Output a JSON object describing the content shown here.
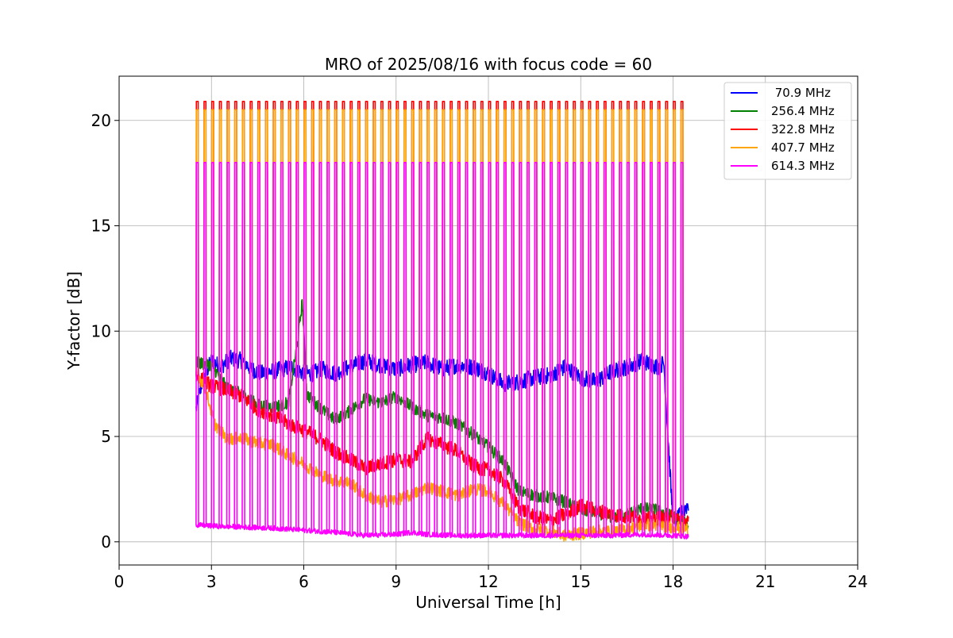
{
  "chart_data": {
    "type": "line",
    "title": "MRO of 2025/08/16 with focus code = 60",
    "xlabel": "Universal Time [h]",
    "ylabel": "Y-factor [dB]",
    "xlim": [
      0,
      24
    ],
    "ylim": [
      -1.1,
      22.1
    ],
    "xticks": [
      0,
      3,
      6,
      9,
      12,
      15,
      18,
      21,
      24
    ],
    "yticks": [
      0,
      5,
      10,
      15,
      20
    ],
    "grid": true,
    "legend_position": "top-right",
    "spikes": {
      "description_values_in_data_units": "periodic calibration spikes",
      "times": [
        2.5,
        2.75,
        3.0,
        3.25,
        3.5,
        3.75,
        4.0,
        4.25,
        4.5,
        4.75,
        5.0,
        5.25,
        5.5,
        5.75,
        6.0,
        6.25,
        6.5,
        6.75,
        7.0,
        7.25,
        7.5,
        7.75,
        8.0,
        8.25,
        8.5,
        8.75,
        9.0,
        9.25,
        9.5,
        9.75,
        10.0,
        10.25,
        10.5,
        10.75,
        11.0,
        11.25,
        11.5,
        11.75,
        12.0,
        12.25,
        12.5,
        12.75,
        13.0,
        13.25,
        13.5,
        13.75,
        14.0,
        14.25,
        14.5,
        14.75,
        15.0,
        15.25,
        15.5,
        15.75,
        16.0,
        16.25,
        16.5,
        16.75,
        17.0,
        17.25,
        17.5,
        17.75,
        18.0,
        18.25
      ],
      "peaks": {
        "322.8 MHz": 20.9,
        "407.7 MHz": 20.5,
        "614.3 MHz": 18.0
      }
    },
    "series": [
      {
        "name": " 70.9 MHz",
        "color": "#0000ff",
        "x": [
          2.5,
          2.7,
          3.0,
          3.3,
          3.6,
          4.0,
          4.3,
          4.6,
          5.0,
          5.3,
          5.6,
          6.0,
          6.3,
          6.6,
          7.0,
          7.5,
          8.0,
          8.5,
          9.0,
          9.5,
          10.0,
          10.5,
          11.0,
          11.5,
          12.0,
          12.5,
          13.0,
          13.5,
          14.0,
          14.5,
          15.0,
          15.5,
          16.0,
          16.5,
          17.0,
          17.5,
          17.7,
          18.0,
          18.5
        ],
        "y": [
          6.3,
          7.6,
          8.6,
          8.3,
          8.7,
          8.6,
          8.2,
          8.0,
          8.1,
          8.2,
          8.3,
          8.0,
          8.0,
          8.2,
          8.0,
          8.3,
          8.6,
          8.4,
          8.2,
          8.4,
          8.5,
          8.2,
          8.4,
          8.3,
          8.0,
          7.5,
          7.6,
          7.8,
          7.9,
          8.3,
          7.8,
          7.6,
          8.1,
          8.3,
          8.6,
          8.3,
          8.5,
          0.8,
          1.8
        ],
        "noise": 0.4
      },
      {
        "name": "256.4 MHz",
        "color": "#008000",
        "x": [
          2.5,
          3.0,
          3.5,
          4.0,
          4.5,
          5.0,
          5.5,
          5.8,
          5.95,
          6.1,
          6.5,
          7.0,
          7.5,
          8.0,
          8.5,
          9.0,
          9.5,
          10.0,
          10.5,
          11.0,
          11.5,
          12.0,
          12.5,
          13.0,
          13.5,
          14.0,
          14.5,
          15.0,
          15.5,
          16.0,
          16.5,
          17.0,
          17.5,
          18.0,
          18.5
        ],
        "y": [
          8.5,
          8.4,
          7.3,
          7.0,
          6.5,
          6.4,
          6.6,
          9.5,
          11.4,
          7.0,
          6.4,
          5.8,
          6.2,
          6.8,
          6.6,
          6.9,
          6.4,
          6.0,
          5.9,
          5.6,
          5.1,
          4.5,
          3.8,
          2.4,
          2.2,
          2.1,
          1.9,
          1.5,
          1.4,
          1.2,
          1.3,
          1.6,
          1.5,
          1.2,
          0.8
        ],
        "noise": 0.3
      },
      {
        "name": "322.8 MHz",
        "color": "#ff0000",
        "x": [
          2.5,
          3.0,
          3.5,
          4.0,
          4.5,
          5.0,
          5.5,
          6.0,
          6.5,
          7.0,
          7.5,
          8.0,
          8.5,
          9.0,
          9.5,
          10.0,
          10.5,
          11.0,
          11.5,
          12.0,
          12.5,
          13.0,
          13.5,
          14.0,
          14.5,
          15.0,
          15.5,
          16.0,
          16.5,
          17.0,
          17.5,
          18.0,
          18.5
        ],
        "y": [
          7.9,
          7.4,
          7.2,
          6.9,
          6.3,
          6.0,
          5.6,
          5.3,
          4.9,
          4.3,
          3.9,
          3.5,
          3.7,
          3.9,
          3.8,
          4.9,
          4.6,
          4.3,
          3.6,
          3.4,
          2.9,
          1.6,
          1.2,
          1.0,
          1.3,
          1.7,
          1.5,
          1.3,
          1.2,
          1.1,
          1.1,
          1.2,
          0.9
        ],
        "noise": 0.35
      },
      {
        "name": "407.7 MHz",
        "color": "#ffa500",
        "x": [
          2.5,
          2.8,
          3.1,
          3.5,
          4.0,
          4.5,
          5.0,
          5.5,
          6.0,
          6.5,
          7.0,
          7.5,
          8.0,
          8.5,
          9.0,
          9.5,
          10.0,
          10.5,
          11.0,
          11.5,
          12.0,
          12.5,
          13.0,
          13.5,
          14.0,
          14.5,
          15.0,
          15.5,
          16.0,
          16.5,
          17.0,
          17.5,
          18.0,
          18.5
        ],
        "y": [
          8.1,
          7.3,
          5.6,
          4.9,
          4.9,
          4.7,
          4.6,
          4.1,
          3.7,
          3.2,
          2.9,
          2.8,
          2.2,
          1.9,
          2.0,
          2.2,
          2.6,
          2.4,
          2.2,
          2.5,
          2.4,
          1.8,
          0.9,
          0.6,
          0.5,
          0.3,
          0.4,
          0.5,
          0.5,
          0.6,
          0.8,
          0.8,
          0.7,
          0.6
        ],
        "noise": 0.3
      },
      {
        "name": "614.3 MHz",
        "color": "#ff00ff",
        "x": [
          2.5,
          3.0,
          4.0,
          5.0,
          6.0,
          7.0,
          8.0,
          9.0,
          9.5,
          10.0,
          11.0,
          12.0,
          13.0,
          14.0,
          15.0,
          16.0,
          17.0,
          18.0,
          18.5
        ],
        "y": [
          0.8,
          0.75,
          0.7,
          0.65,
          0.55,
          0.45,
          0.3,
          0.35,
          0.45,
          0.35,
          0.3,
          0.3,
          0.3,
          0.3,
          0.3,
          0.3,
          0.35,
          0.3,
          0.25
        ],
        "noise": 0.12
      }
    ]
  }
}
